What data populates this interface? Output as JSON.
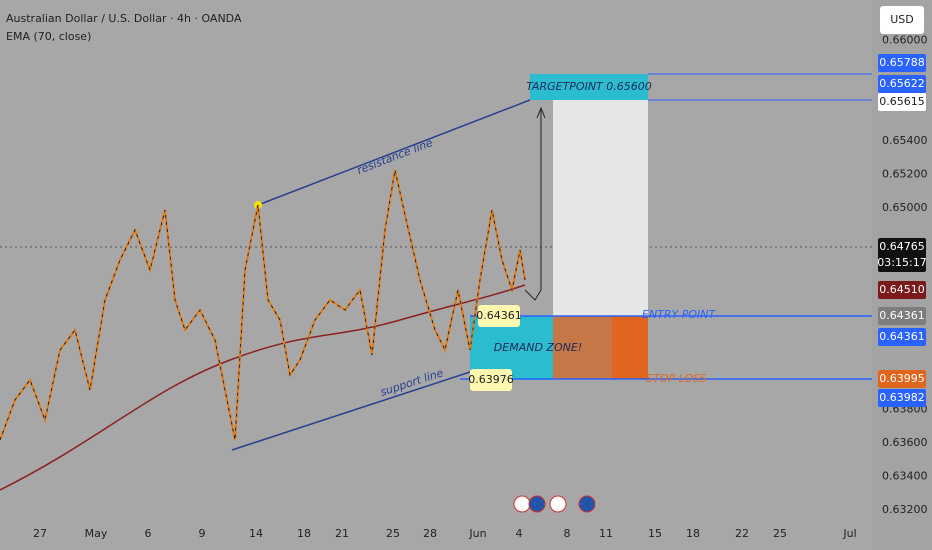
{
  "header": {
    "symbol": "Australian Dollar / U.S. Dollar · 4h · OANDA",
    "indicator": "EMA (70, close)"
  },
  "currency": "USD",
  "price_axis": {
    "ticks": [
      "0.66000",
      "0.65400",
      "0.65200",
      "0.65000",
      "0.63800",
      "0.63600",
      "0.63400",
      "0.63200"
    ]
  },
  "price_badges": [
    {
      "label": "0.65788",
      "style": "blue"
    },
    {
      "label": "0.65622",
      "style": "blue"
    },
    {
      "label": "0.65615",
      "style": "white"
    },
    {
      "label": "0.64765",
      "style": "black",
      "timer": "03:15:17"
    },
    {
      "label": "0.64510",
      "style": "darkred"
    },
    {
      "label": "0.64361",
      "style": "gray"
    },
    {
      "label": "0.64361",
      "style": "blue"
    },
    {
      "label": "0.63995",
      "style": "orange"
    },
    {
      "label": "0.63982",
      "style": "blue"
    }
  ],
  "time_axis": {
    "labels": [
      "27",
      "May",
      "6",
      "9",
      "14",
      "18",
      "21",
      "25",
      "28",
      "Jun",
      "4",
      "8",
      "11",
      "15",
      "18",
      "22",
      "25",
      "Jul"
    ]
  },
  "annotations": {
    "resistance": "resistance line",
    "support": "support line",
    "target": "TARGETPOINT  0.65600",
    "entry": "ENTRY POINT",
    "stop": "STOP LOSS",
    "demand": "DEMAND ZONE!",
    "entry_price": "0.64361",
    "stop_price": "0.63976"
  }
}
